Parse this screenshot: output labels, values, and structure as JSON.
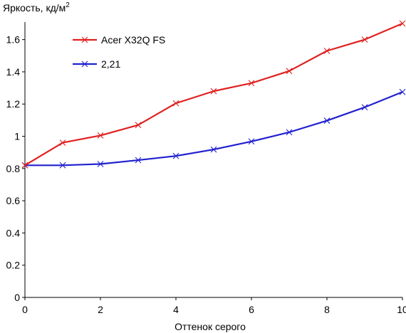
{
  "chart_data": {
    "type": "line",
    "title": "",
    "ylabel": "Яркость, кд/м",
    "ylabel_superscript": "2",
    "xlabel": "Оттенок серого",
    "xlim": [
      0,
      10
    ],
    "ylim": [
      0,
      1.7
    ],
    "x_ticks": [
      "0",
      "2",
      "4",
      "6",
      "8",
      "10"
    ],
    "y_ticks": [
      "0",
      "0.2",
      "0.4",
      "0.6",
      "0.8",
      "1",
      "1.2",
      "1.4",
      "1.6"
    ],
    "grid": false,
    "legend_position": "top-left",
    "x": [
      0,
      1,
      2,
      3,
      4,
      5,
      6,
      7,
      8,
      9,
      10
    ],
    "series": [
      {
        "name": "Acer X32Q FS",
        "color": "#e02020",
        "marker": "x",
        "values": [
          0.82,
          0.96,
          1.005,
          1.07,
          1.205,
          1.28,
          1.33,
          1.405,
          1.53,
          1.6,
          1.7
        ]
      },
      {
        "name": "2,21",
        "color": "#2020d0",
        "marker": "x",
        "values": [
          0.82,
          0.82,
          0.828,
          0.852,
          0.878,
          0.918,
          0.968,
          1.025,
          1.097,
          1.18,
          1.275
        ]
      }
    ]
  }
}
